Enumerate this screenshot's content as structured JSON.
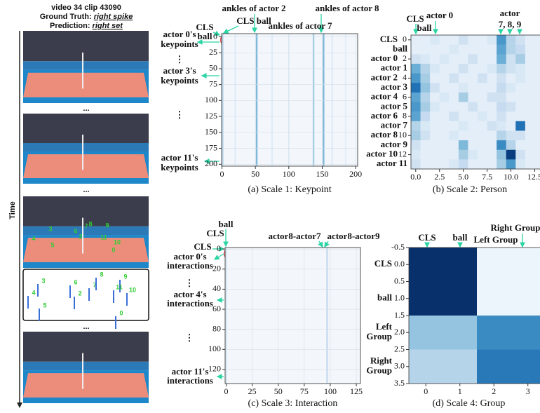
{
  "video": {
    "title": "video 34 clip 43090",
    "ground_truth_label": "Ground Truth:",
    "ground_truth": "right spike",
    "prediction_label": "Prediction:",
    "prediction": "right set",
    "time_label": "Time",
    "ellipsis": "...",
    "actor_labels": [
      "3",
      "4",
      "6",
      "2",
      "7",
      "8",
      "9",
      "11",
      "10",
      "5",
      "0"
    ]
  },
  "chart_data": [
    {
      "type": "strips",
      "caption": "(a) Scale 1: Keypoint",
      "xlim": [
        -0.5,
        203
      ],
      "ylim": [
        -5,
        203
      ],
      "y_inverted": true,
      "grid": true,
      "xticks": [
        0,
        50,
        100,
        150,
        200
      ],
      "yticks": [
        0,
        25,
        50,
        75,
        100,
        125,
        150,
        175,
        200
      ],
      "columns": [
        {
          "x": 1,
          "value": 0.3
        },
        {
          "x": 20,
          "value": 0.12
        },
        {
          "x": 52,
          "value": 0.45
        },
        {
          "x": 75,
          "value": 0.12
        },
        {
          "x": 100,
          "value": 0.1
        },
        {
          "x": 137,
          "value": 0.35
        },
        {
          "x": 152,
          "value": 0.45
        },
        {
          "x": 165,
          "value": 0.12
        },
        {
          "x": 185,
          "value": 0.1
        }
      ],
      "annotations": {
        "cls": "CLS",
        "ball": "ball",
        "cls_ball": "CLS ball",
        "ankles_2": "ankles of actor 2",
        "ankles_8": "ankles of actor 8",
        "ankles_7": "ankles of actor 7",
        "vdots": "⋮"
      },
      "row_groups": [
        [
          "actor 0's",
          "keypoints"
        ],
        [
          "actor 3's",
          "keypoints"
        ],
        [
          "actor 11's",
          "keypoints"
        ]
      ]
    },
    {
      "type": "heatmap",
      "caption": "(b) Scale 2: Person",
      "xlim": [
        -0.5,
        13.5
      ],
      "ylim": [
        -0.5,
        13.5
      ],
      "y_inverted": true,
      "xticks": [
        {
          "value": 0,
          "label": "0.0"
        },
        2.5,
        {
          "value": 5,
          "label": "5.0"
        },
        7.5,
        {
          "value": 10,
          "label": "10.0"
        },
        12.5
      ],
      "yticks": [
        0,
        2,
        4,
        6,
        8,
        10,
        12
      ],
      "categories": [
        "CLS",
        "ball",
        "actor 0",
        "actor 1",
        "actor 2",
        "actor 3",
        "actor 4",
        "actor 5",
        "actor 6",
        "actor 7",
        "actor 8",
        "actor 9",
        "actor 10",
        "actor 11"
      ],
      "annotations": {
        "cls": "CLS",
        "ball": "ball",
        "actor0": "actor 0",
        "actor": "actor",
        "actors": "7, 8, 9"
      },
      "values": [
        [
          0.1,
          0.1,
          0.15,
          0.1,
          0.1,
          0.2,
          0.1,
          0.1,
          0.15,
          0.6,
          0.3,
          0.2,
          0.1,
          0.1
        ],
        [
          0.1,
          0.1,
          0.1,
          0.1,
          0.15,
          0.1,
          0.1,
          0.1,
          0.1,
          0.55,
          0.3,
          0.25,
          0.1,
          0.1
        ],
        [
          0.2,
          0.15,
          0.1,
          0.15,
          0.1,
          0.1,
          0.2,
          0.1,
          0.1,
          0.5,
          0.2,
          0.35,
          0.1,
          0.1
        ],
        [
          0.5,
          0.3,
          0.15,
          0.1,
          0.1,
          0.2,
          0.1,
          0.1,
          0.15,
          0.3,
          0.2,
          0.15,
          0.1,
          0.1
        ],
        [
          0.6,
          0.35,
          0.1,
          0.1,
          0.2,
          0.1,
          0.1,
          0.2,
          0.1,
          0.2,
          0.1,
          0.15,
          0.1,
          0.1
        ],
        [
          0.75,
          0.4,
          0.2,
          0.1,
          0.1,
          0.15,
          0.1,
          0.1,
          0.1,
          0.25,
          0.15,
          0.1,
          0.1,
          0.1
        ],
        [
          0.55,
          0.3,
          0.1,
          0.15,
          0.1,
          0.35,
          0.1,
          0.1,
          0.2,
          0.2,
          0.1,
          0.1,
          0.1,
          0.1
        ],
        [
          0.6,
          0.35,
          0.15,
          0.1,
          0.1,
          0.1,
          0.2,
          0.1,
          0.1,
          0.25,
          0.2,
          0.1,
          0.1,
          0.1
        ],
        [
          0.55,
          0.25,
          0.1,
          0.1,
          0.2,
          0.1,
          0.1,
          0.15,
          0.1,
          0.2,
          0.1,
          0.1,
          0.1,
          0.1
        ],
        [
          0.3,
          0.15,
          0.1,
          0.1,
          0.1,
          0.15,
          0.1,
          0.1,
          0.2,
          0.15,
          0.1,
          0.75,
          0.1,
          0.1
        ],
        [
          0.35,
          0.2,
          0.1,
          0.1,
          0.15,
          0.1,
          0.1,
          0.1,
          0.1,
          0.3,
          0.2,
          0.2,
          0.1,
          0.1
        ],
        [
          0.2,
          0.1,
          0.1,
          0.1,
          0.1,
          0.45,
          0.1,
          0.1,
          0.1,
          0.65,
          0.3,
          0.1,
          0.1,
          0.1
        ],
        [
          0.15,
          0.1,
          0.1,
          0.1,
          0.1,
          0.35,
          0.15,
          0.1,
          0.1,
          0.4,
          0.95,
          0.2,
          0.1,
          0.1
        ],
        [
          0.2,
          0.1,
          0.1,
          0.1,
          0.15,
          0.25,
          0.1,
          0.1,
          0.1,
          0.35,
          0.6,
          0.15,
          0.1,
          0.1
        ]
      ]
    },
    {
      "type": "strips",
      "caption": "(c) Scale 3: Interaction",
      "xlim": [
        -1,
        129
      ],
      "ylim": [
        -1.5,
        134
      ],
      "y_inverted": true,
      "grid": true,
      "xticks": [
        0,
        25,
        50,
        75,
        100,
        125
      ],
      "yticks": [
        0,
        20,
        40,
        60,
        80,
        100,
        120
      ],
      "columns": [
        {
          "x": 0,
          "value": 0.15
        },
        {
          "x": 97,
          "value": 0.25
        }
      ],
      "annotations": {
        "ball": "ball",
        "cls": "CLS",
        "pair_7": "actor8-actor7",
        "pair_9": "actor8-actor9",
        "vdots": "⋮"
      },
      "row_groups": [
        [
          "actor 0's",
          "interactions"
        ],
        [
          "actor 4's",
          "interactions"
        ],
        [
          "actor 11's",
          "interactions"
        ]
      ]
    },
    {
      "type": "heatmap",
      "caption": "(d) Scale 4: Group",
      "xlim": [
        -0.5,
        3.5
      ],
      "ylim": [
        -0.5,
        3.5
      ],
      "y_inverted": true,
      "xticks": [
        0,
        1,
        2,
        3
      ],
      "yticks": [
        -0.5,
        {
          "value": 0,
          "label": "0.0"
        },
        0.5,
        {
          "value": 1,
          "label": "1.0"
        },
        1.5,
        {
          "value": 2,
          "label": "2.0"
        },
        2.5,
        {
          "value": 3,
          "label": "3.0"
        },
        3.5
      ],
      "row_labels": [
        [
          "CLS"
        ],
        [
          "ball"
        ],
        [
          "Left",
          "Group"
        ],
        [
          "Right",
          "Group"
        ]
      ],
      "annotations": {
        "cls": "CLS",
        "ball": "ball",
        "left": "Left Group",
        "right": "Right Group"
      },
      "values": [
        [
          1.0,
          1.0,
          0.05,
          0.05
        ],
        [
          1.0,
          1.0,
          0.05,
          0.05
        ],
        [
          0.4,
          0.4,
          0.65,
          0.65
        ],
        [
          0.3,
          0.3,
          0.72,
          0.72
        ]
      ]
    }
  ]
}
